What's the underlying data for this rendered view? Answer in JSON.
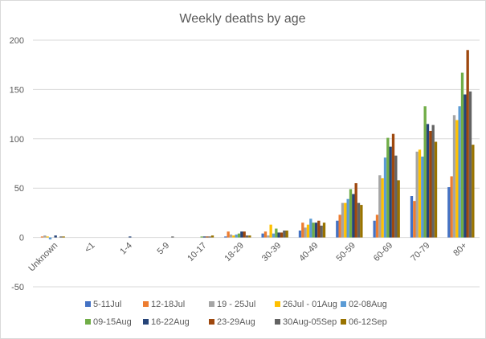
{
  "chart_data": {
    "type": "bar",
    "title": "Weekly deaths by age",
    "xlabel": "",
    "ylabel": "",
    "ylim": [
      -50,
      200
    ],
    "yticks": [
      -50,
      0,
      50,
      100,
      150,
      200
    ],
    "grid": true,
    "legend_position": "bottom",
    "categories": [
      "Unknown",
      "<1",
      "1-4",
      "5-9",
      "10-17",
      "18-29",
      "30-39",
      "40-49",
      "50-59",
      "60-69",
      "70-79",
      "80+"
    ],
    "series": [
      {
        "name": "5-11Jul",
        "color": "#4472C4",
        "values": [
          0,
          0,
          0,
          0,
          0,
          1,
          4,
          7,
          17,
          17,
          42,
          51
        ]
      },
      {
        "name": "12-18Jul",
        "color": "#ED7D31",
        "values": [
          1,
          0,
          0,
          0,
          0,
          6,
          6,
          15,
          23,
          23,
          37,
          62
        ]
      },
      {
        "name": "19 - 25Jul",
        "color": "#A5A5A5",
        "values": [
          2,
          0,
          0,
          0,
          0,
          3,
          2,
          10,
          35,
          63,
          87,
          124
        ]
      },
      {
        "name": "26Jul - 01Aug",
        "color": "#FFC000",
        "values": [
          1,
          0,
          0,
          0,
          0,
          2,
          13,
          13,
          35,
          60,
          89,
          119
        ]
      },
      {
        "name": "02-08Aug",
        "color": "#5B9BD5",
        "values": [
          -2,
          0,
          0,
          0,
          0,
          3,
          4,
          19,
          39,
          81,
          82,
          133
        ]
      },
      {
        "name": "09-15Aug",
        "color": "#70AD47",
        "values": [
          0,
          0,
          0,
          0,
          1,
          4,
          9,
          15,
          49,
          101,
          133,
          167
        ]
      },
      {
        "name": "16-22Aug",
        "color": "#264478",
        "values": [
          2,
          0,
          1,
          0,
          1,
          6,
          5,
          15,
          44,
          92,
          115,
          145
        ]
      },
      {
        "name": "23-29Aug",
        "color": "#9E480E",
        "values": [
          0,
          0,
          0,
          0,
          1,
          6,
          5,
          17,
          55,
          105,
          108,
          190
        ]
      },
      {
        "name": "30Aug-05Sep",
        "color": "#636363",
        "values": [
          1,
          0,
          0,
          1,
          1,
          2,
          7,
          12,
          35,
          83,
          114,
          148
        ]
      },
      {
        "name": "06-12Sep",
        "color": "#997300",
        "values": [
          1,
          0,
          0,
          0,
          2,
          2,
          7,
          15,
          33,
          58,
          97,
          94
        ]
      }
    ]
  }
}
